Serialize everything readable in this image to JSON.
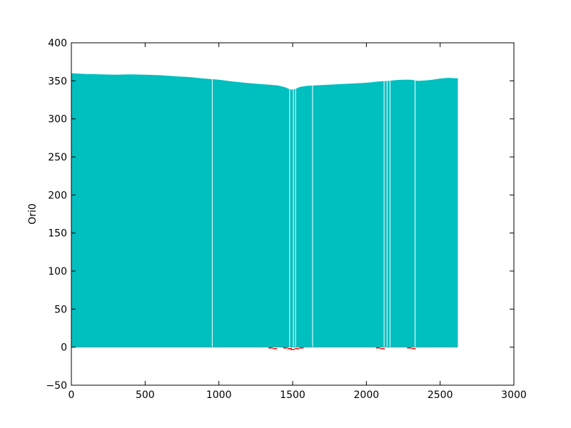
{
  "chart_data": {
    "type": "area",
    "title": "",
    "xlabel": "",
    "ylabel": "Ori0",
    "xlim": [
      0,
      3000
    ],
    "ylim": [
      -50,
      400
    ],
    "x_ticks": [
      0,
      500,
      1000,
      1500,
      2000,
      2500,
      3000
    ],
    "y_ticks": [
      -50,
      0,
      50,
      100,
      150,
      200,
      250,
      300,
      350,
      400
    ],
    "x_tick_labels": [
      "0",
      "500",
      "1000",
      "1500",
      "2000",
      "2500",
      "3000"
    ],
    "y_tick_labels": [
      "−50",
      "0",
      "50",
      "100",
      "150",
      "200",
      "250",
      "300",
      "350",
      "400"
    ],
    "grid": false,
    "series": [
      {
        "color": "#00bfbf",
        "x": [
          0,
          50,
          100,
          200,
          300,
          400,
          500,
          600,
          700,
          800,
          900,
          1000,
          1100,
          1200,
          1300,
          1400,
          1450,
          1480,
          1500,
          1520,
          1550,
          1600,
          1700,
          1800,
          1900,
          2000,
          2100,
          2150,
          2200,
          2250,
          2300,
          2350,
          2400,
          2450,
          2500,
          2550,
          2600,
          2620
        ],
        "y": [
          360,
          359.5,
          359,
          358.5,
          358,
          358.5,
          358,
          357.5,
          356,
          355,
          353,
          351.5,
          349,
          347,
          345.5,
          344,
          341.5,
          339,
          338.5,
          339.5,
          342,
          343.5,
          344.5,
          345.5,
          346.5,
          347.5,
          349.5,
          350,
          351,
          351.5,
          351.5,
          350,
          350.5,
          351.5,
          353,
          354,
          353.5,
          353.5
        ]
      },
      {
        "color": "#ff0000",
        "x": [
          1350,
          1380,
          1450,
          1480,
          1500,
          1530,
          1560,
          2080,
          2110,
          2290,
          2320
        ],
        "y": [
          -1,
          -2,
          -1,
          -2,
          -3,
          -2,
          -1,
          -1,
          -2,
          -1,
          -2
        ]
      }
    ],
    "gaps_x": [
      955,
      1480,
      1505,
      1520,
      1635,
      2120,
      2140,
      2160,
      2330
    ]
  }
}
